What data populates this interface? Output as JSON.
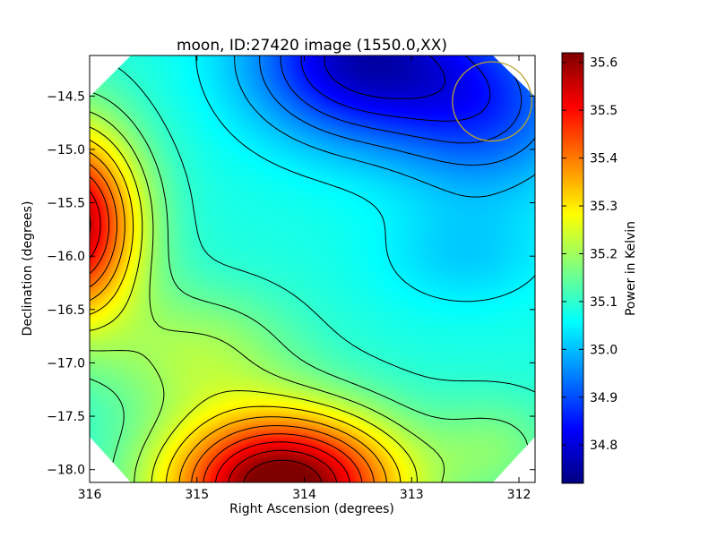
{
  "chart_data": {
    "type": "heatmap",
    "title": "moon, ID:27420 image (1550.0,XX)",
    "xlabel": "Right Ascension (degrees)",
    "ylabel": "Declination (degrees)",
    "colorbar_label": "Power in Kelvin",
    "x_range": [
      316.0,
      311.85
    ],
    "y_range": [
      -18.12,
      -14.12
    ],
    "x_ticks": [
      {
        "value": 316,
        "label": "316"
      },
      {
        "value": 315,
        "label": "315"
      },
      {
        "value": 314,
        "label": "314"
      },
      {
        "value": 313,
        "label": "313"
      },
      {
        "value": 312,
        "label": "312"
      }
    ],
    "y_ticks": [
      {
        "value": -14.5,
        "label": "−14.5"
      },
      {
        "value": -15.0,
        "label": "−15.0"
      },
      {
        "value": -15.5,
        "label": "−15.5"
      },
      {
        "value": -16.0,
        "label": "−16.0"
      },
      {
        "value": -16.5,
        "label": "−16.5"
      },
      {
        "value": -17.0,
        "label": "−17.0"
      },
      {
        "value": -17.5,
        "label": "−17.5"
      },
      {
        "value": -18.0,
        "label": "−18.0"
      }
    ],
    "colorbar": {
      "range": [
        34.72,
        35.62
      ],
      "colormap": "jet",
      "ticks": [
        {
          "value": 34.8,
          "label": "34.8"
        },
        {
          "value": 34.9,
          "label": "34.9"
        },
        {
          "value": 35.0,
          "label": "35.0"
        },
        {
          "value": 35.1,
          "label": "35.1"
        },
        {
          "value": 35.2,
          "label": "35.2"
        },
        {
          "value": 35.3,
          "label": "35.3"
        },
        {
          "value": 35.4,
          "label": "35.4"
        },
        {
          "value": 35.5,
          "label": "35.5"
        },
        {
          "value": 35.6,
          "label": "35.6"
        }
      ]
    },
    "features": [
      {
        "kind": "maximum",
        "ra": 314.2,
        "dec": -18.0,
        "value": 35.62
      },
      {
        "kind": "maximum",
        "ra": 316.0,
        "dec": -15.75,
        "value": 35.55
      },
      {
        "kind": "minimum",
        "ra": 313.5,
        "dec": -14.3,
        "value": 34.72
      },
      {
        "kind": "saddle",
        "ra": 314.8,
        "dec": -16.3,
        "value": 35.12
      }
    ],
    "marker_circle": {
      "ra": 312.25,
      "dec": -14.55,
      "radius_deg": 0.37,
      "color": "#b9a230"
    },
    "contours": "on",
    "grid": "off"
  }
}
